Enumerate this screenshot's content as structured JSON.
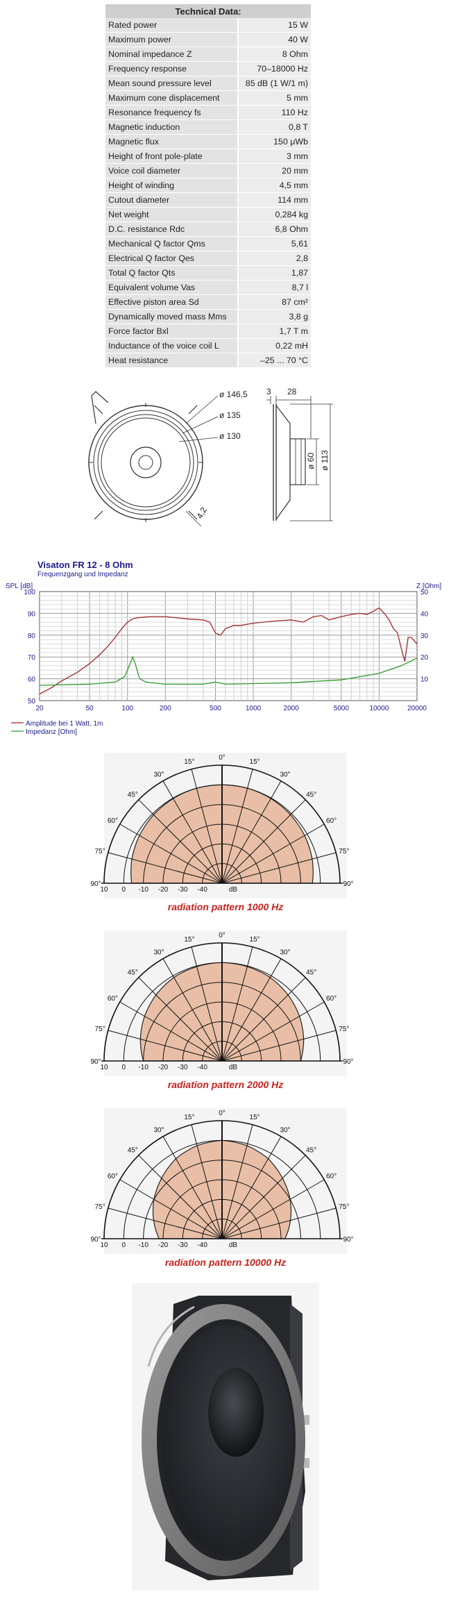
{
  "specs": {
    "title": "Technical Data:",
    "rows": [
      {
        "label": "Rated power",
        "value": "15 W"
      },
      {
        "label": "Maximum power",
        "value": "40 W"
      },
      {
        "label": "Nominal impedance Z",
        "value": "8 Ohm"
      },
      {
        "label": "Frequency response",
        "value": "70–18000 Hz"
      },
      {
        "label": "Mean sound pressure level",
        "value": "85 dB (1 W/1 m)"
      },
      {
        "label": "Maximum cone displacement",
        "value": "5 mm"
      },
      {
        "label": "Resonance frequency fs",
        "value": "110 Hz"
      },
      {
        "label": "Magnetic induction",
        "value": "0,8 T"
      },
      {
        "label": "Magnetic flux",
        "value": "150 μWb"
      },
      {
        "label": "Height of front pole-plate",
        "value": "3 mm"
      },
      {
        "label": "Voice coil diameter",
        "value": "20 mm"
      },
      {
        "label": "Height of winding",
        "value": "4,5 mm"
      },
      {
        "label": "Cutout diameter",
        "value": "114 mm"
      },
      {
        "label": "Net weight",
        "value": "0,284 kg"
      },
      {
        "label": "D.C. resistance Rdc",
        "value": "6,8 Ohm"
      },
      {
        "label": "Mechanical Q factor Qms",
        "value": "5,61"
      },
      {
        "label": "Electrical Q factor Qes",
        "value": "2,8"
      },
      {
        "label": "Total Q factor Qts",
        "value": "1,87"
      },
      {
        "label": "Equivalent volume Vas",
        "value": "8,7 l"
      },
      {
        "label": "Effective piston area Sd",
        "value": "87 cm²"
      },
      {
        "label": "Dynamically moved mass Mms",
        "value": "3,8 g"
      },
      {
        "label": "Force factor Bxl",
        "value": "1,7 T m"
      },
      {
        "label": "Inductance of the voice coil L",
        "value": "0,22 mH"
      },
      {
        "label": "Heat resistance",
        "value": "–25 ... 70 °C"
      }
    ]
  },
  "drawing": {
    "front_labels": [
      "ø 146,5",
      "ø 135",
      "ø 130",
      "4,2"
    ],
    "side_labels": [
      "3",
      "28",
      "ø 60",
      "ø 113"
    ]
  },
  "chart_data": {
    "type": "line",
    "title": "Visaton FR 12 - 8 Ohm",
    "subtitle": "Frequenzgang und Impedanz",
    "ylabel": "SPL [dB]",
    "y2label": "Z [Ohm]",
    "xscale": "log",
    "xlim": [
      20,
      20000
    ],
    "ylim": [
      50,
      100
    ],
    "y2lim": [
      0,
      50
    ],
    "xticks": [
      "20",
      "50",
      "100",
      "200",
      "500",
      "1000",
      "2000",
      "5000",
      "10000",
      "20000"
    ],
    "yticks": [
      "100",
      "90",
      "80",
      "70",
      "60",
      "50"
    ],
    "y2ticks": [
      "50",
      "40",
      "30",
      "20",
      "10"
    ],
    "colors": {
      "spl": "#a0262a",
      "impedance": "#2e9a2e",
      "axis": "#1a1a8c"
    },
    "series": [
      {
        "name": "Amplitude bei 1 Watt, 1m",
        "axis": "left",
        "x": [
          20,
          25,
          30,
          40,
          50,
          60,
          70,
          80,
          90,
          100,
          110,
          120,
          150,
          200,
          300,
          400,
          450,
          500,
          550,
          600,
          700,
          800,
          1000,
          1200,
          1500,
          2000,
          2500,
          3000,
          3500,
          4000,
          5000,
          6000,
          7000,
          8000,
          9000,
          10000,
          11000,
          12000,
          13000,
          14000,
          15000,
          16000,
          17000,
          18000,
          20000
        ],
        "y": [
          53,
          56,
          59,
          63,
          67,
          71,
          75,
          79,
          83,
          86,
          87.5,
          88,
          88.5,
          88.5,
          87.5,
          87,
          86,
          81,
          80,
          83,
          84.5,
          84.5,
          85.5,
          86,
          86.5,
          87,
          86,
          88.5,
          89,
          87,
          88.5,
          89.5,
          90,
          89.5,
          91,
          92.5,
          90,
          87,
          83,
          81,
          74,
          68,
          79,
          79,
          76
        ]
      },
      {
        "name": "Impedanz [Ohm]",
        "axis": "right",
        "x": [
          20,
          50,
          80,
          95,
          105,
          110,
          115,
          125,
          140,
          200,
          400,
          500,
          600,
          1000,
          2000,
          5000,
          10000,
          15000,
          20000
        ],
        "y": [
          7,
          7.5,
          8.5,
          11,
          17,
          20,
          17,
          10,
          8.5,
          7.5,
          7.5,
          8.5,
          7.5,
          7.8,
          8.2,
          9.5,
          12.5,
          16,
          19.5
        ]
      }
    ]
  },
  "radiation": {
    "angles": [
      "0°",
      "15°",
      "30°",
      "45°",
      "60°",
      "75°",
      "90°"
    ],
    "db": [
      "10",
      "0",
      "-10",
      "-20",
      "-30",
      "-40",
      "dB"
    ],
    "patterns": [
      {
        "caption": "radiation pattern 1000 Hz",
        "levels": [
          0,
          0,
          -0.3,
          -0.8,
          -1.5,
          -2.5,
          -4
        ]
      },
      {
        "caption": "radiation pattern 2000 Hz",
        "levels": [
          0,
          -0.3,
          -1,
          -2.5,
          -4.5,
          -7,
          -10
        ]
      },
      {
        "caption": "radiation pattern 10000 Hz",
        "levels": [
          0,
          -1,
          -3,
          -6.5,
          -10,
          -14,
          -18
        ]
      }
    ]
  },
  "colors": {
    "pattern_fill": "#e8bfa6",
    "pattern_bg": "#f4f4f4"
  }
}
